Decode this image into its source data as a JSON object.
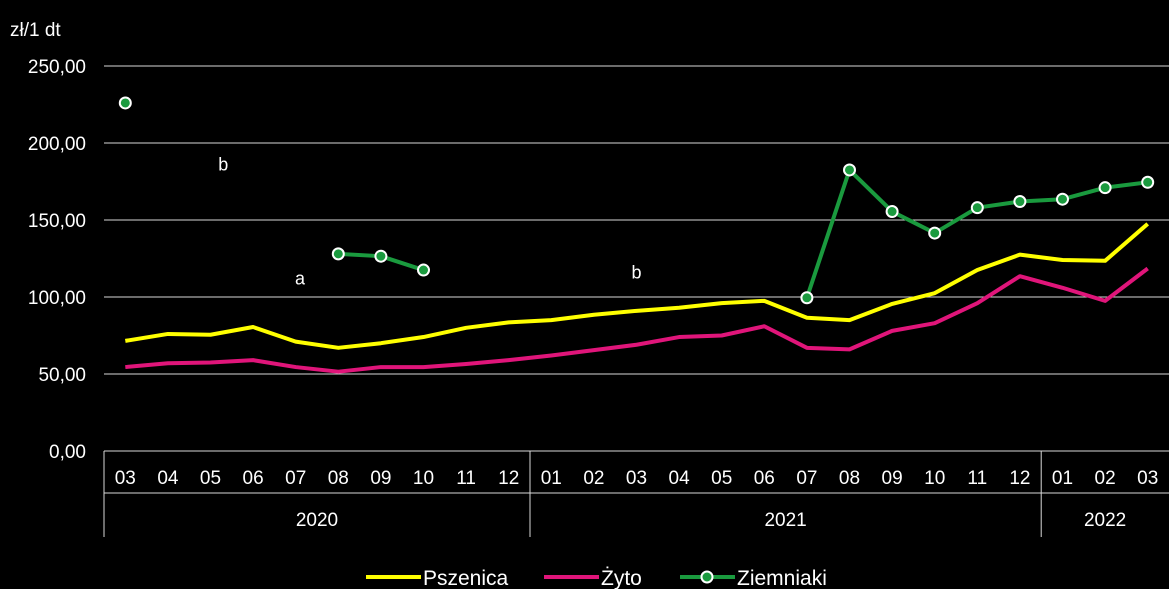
{
  "chart_data": {
    "type": "line",
    "ylabel": "zł/1 dt",
    "ylim": [
      0,
      250
    ],
    "yticks": [
      "0,00",
      "50,00",
      "100,00",
      "150,00",
      "200,00",
      "250,00"
    ],
    "grid": true,
    "legend_position": "bottom",
    "categories": [
      "03",
      "04",
      "05",
      "06",
      "07",
      "08",
      "09",
      "10",
      "11",
      "12",
      "01",
      "02",
      "03",
      "04",
      "05",
      "06",
      "07",
      "08",
      "09",
      "10",
      "11",
      "12",
      "01",
      "02",
      "03"
    ],
    "year_groups": [
      {
        "label": "2020",
        "start": 0,
        "end": 9
      },
      {
        "label": "2021",
        "start": 10,
        "end": 21
      },
      {
        "label": "2022",
        "start": 22,
        "end": 24
      }
    ],
    "series": [
      {
        "name": "Pszenica",
        "color": "#ffff00",
        "markers": false,
        "values": [
          71.5,
          76,
          75.5,
          80.5,
          71,
          67,
          70,
          74,
          80,
          83.5,
          85,
          88.5,
          91,
          93,
          96,
          97.5,
          86.5,
          85,
          95.5,
          102.5,
          117.5,
          127.5,
          124,
          123.5,
          147.5
        ]
      },
      {
        "name": "Żyto",
        "color": "#e0157a",
        "markers": false,
        "values": [
          54.5,
          57,
          57.5,
          59,
          54.5,
          51.5,
          54.5,
          54.5,
          56.5,
          59,
          62,
          65.5,
          69,
          74,
          75,
          81,
          67,
          66,
          78,
          83,
          96,
          113.5,
          106,
          97.5,
          118.5
        ]
      },
      {
        "name": "Ziemniaki",
        "color": "#1a9a3e",
        "markers": true,
        "values": [
          226,
          null,
          null,
          null,
          null,
          128,
          126.5,
          117.5,
          null,
          null,
          null,
          null,
          null,
          null,
          null,
          null,
          99.5,
          182.5,
          155.5,
          141.5,
          158,
          162,
          163.5,
          171,
          174.5
        ]
      }
    ],
    "annotations": [
      {
        "text": "b",
        "x_index": 2.3,
        "y": 186
      },
      {
        "text": "a",
        "x_index": 4.1,
        "y": 112
      },
      {
        "text": "b",
        "x_index": 12.0,
        "y": 116
      }
    ]
  }
}
